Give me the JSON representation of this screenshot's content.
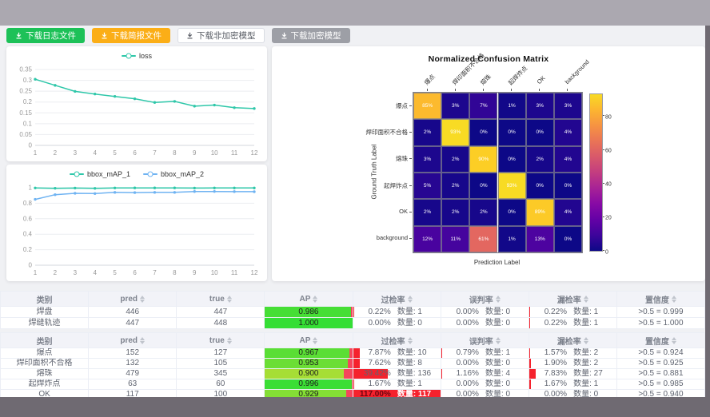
{
  "window": {
    "topband_color": "#aba8b0",
    "chrome_color": "#6f6a72",
    "content_bg": "#f0f1f4"
  },
  "toolbar": {
    "buttons": [
      {
        "name": "download-log-file-button",
        "label": "下载日志文件",
        "bg": "#1dc158",
        "fg": "#ffffff",
        "border": "#1dc158"
      },
      {
        "name": "download-report-file-button",
        "label": "下载简报文件",
        "bg": "#fbae17",
        "fg": "#ffffff",
        "border": "#fbae17"
      },
      {
        "name": "download-unencrypted-model-button",
        "label": "下载非加密模型",
        "bg": "#ffffff",
        "fg": "#5a5e66",
        "border": "#d9dce3"
      },
      {
        "name": "download-encrypted-model-button",
        "label": "下载加密模型",
        "bg": "#9d9fa6",
        "fg": "#ffffff",
        "border": "#9d9fa6"
      }
    ]
  },
  "chart_data": [
    {
      "type": "line",
      "title": "",
      "legend_position": "top",
      "x": [
        1,
        2,
        3,
        4,
        5,
        6,
        7,
        8,
        9,
        10,
        11,
        12
      ],
      "series": [
        {
          "name": "loss",
          "color": "#2ec7a9",
          "values": [
            0.305,
            0.277,
            0.249,
            0.237,
            0.226,
            0.215,
            0.198,
            0.203,
            0.181,
            0.186,
            0.174,
            0.17
          ]
        }
      ],
      "ylim": [
        0,
        0.35
      ],
      "yticks": [
        0,
        0.05,
        0.1,
        0.15,
        0.2,
        0.25,
        0.3,
        0.35
      ],
      "grid": true
    },
    {
      "type": "line",
      "title": "",
      "legend_position": "top",
      "x": [
        1,
        2,
        3,
        4,
        5,
        6,
        7,
        8,
        9,
        10,
        11,
        12
      ],
      "series": [
        {
          "name": "bbox_mAP_1",
          "color": "#2ec7a9",
          "values": [
            0.997,
            0.993,
            0.996,
            0.992,
            0.997,
            0.998,
            0.998,
            0.998,
            0.996,
            0.997,
            0.997,
            0.997
          ]
        },
        {
          "name": "bbox_mAP_2",
          "color": "#6fb3f2",
          "values": [
            0.85,
            0.91,
            0.928,
            0.925,
            0.94,
            0.937,
            0.94,
            0.94,
            0.951,
            0.952,
            0.95,
            0.949
          ]
        }
      ],
      "ylim": [
        0,
        1
      ],
      "yticks": [
        0,
        0.2,
        0.4,
        0.6,
        0.8,
        1
      ],
      "grid": true
    },
    {
      "type": "heatmap",
      "title": "Normalized Confusion Matrix",
      "xlabel": "Prediction Label",
      "ylabel": "Ground Truth Label",
      "labels": [
        "爆点",
        "焊印面积不合格",
        "熔珠",
        "起焊炸点",
        "OK",
        "background"
      ],
      "matrix_percent": [
        [
          85,
          3,
          7,
          1,
          3,
          3
        ],
        [
          2,
          93,
          0,
          0,
          0,
          4
        ],
        [
          3,
          2,
          90,
          0,
          2,
          4
        ],
        [
          5,
          2,
          0,
          93,
          0,
          0
        ],
        [
          2,
          2,
          2,
          0,
          89,
          4
        ],
        [
          12,
          11,
          61,
          1,
          13,
          0
        ]
      ],
      "colormap": "plasma",
      "colorbar_ticks": [
        0,
        20,
        40,
        60,
        80
      ],
      "colorbar_max": 93
    }
  ],
  "tables": {
    "count_label": "数量",
    "headers": [
      "类别",
      "pred",
      "true",
      "AP",
      "过检率",
      "误判率",
      "漏检率",
      "置信度"
    ],
    "groups": [
      {
        "rows": [
          {
            "cls": "焊盘",
            "pred": 446,
            "true": 447,
            "ap": 0.986,
            "over": 0.22,
            "over_n": 1,
            "mis": 0.0,
            "mis_n": 0,
            "miss": 0.22,
            "miss_n": 1,
            "conf": ">0.5 = 0.999"
          },
          {
            "cls": "焊缝轨迹",
            "pred": 447,
            "true": 448,
            "ap": 1.0,
            "over": 0.0,
            "over_n": 0,
            "mis": 0.0,
            "mis_n": 0,
            "miss": 0.22,
            "miss_n": 1,
            "conf": ">0.5 = 1.000"
          }
        ]
      },
      {
        "rows": [
          {
            "cls": "爆点",
            "pred": 152,
            "true": 127,
            "ap": 0.967,
            "over": 7.87,
            "over_n": 10,
            "mis": 0.79,
            "mis_n": 1,
            "miss": 1.57,
            "miss_n": 2,
            "conf": ">0.5 = 0.924"
          },
          {
            "cls": "焊印面积不合格",
            "pred": 132,
            "true": 105,
            "ap": 0.953,
            "over": 7.62,
            "over_n": 8,
            "mis": 0.0,
            "mis_n": 0,
            "miss": 1.9,
            "miss_n": 2,
            "conf": ">0.5 = 0.925"
          },
          {
            "cls": "熔珠",
            "pred": 479,
            "true": 345,
            "ap": 0.9,
            "over": 39.42,
            "over_n": 136,
            "mis": 1.16,
            "mis_n": 4,
            "miss": 7.83,
            "miss_n": 27,
            "conf": ">0.5 = 0.881"
          },
          {
            "cls": "起焊炸点",
            "pred": 63,
            "true": 60,
            "ap": 0.996,
            "over": 1.67,
            "over_n": 1,
            "mis": 0.0,
            "mis_n": 0,
            "miss": 1.67,
            "miss_n": 1,
            "conf": ">0.5 = 0.985"
          },
          {
            "cls": "OK",
            "pred": 117,
            "true": 100,
            "ap": 0.929,
            "over": 117.0,
            "over_n": 117,
            "mis": 0.0,
            "mis_n": 0,
            "miss": 0.0,
            "miss_n": 0,
            "conf": ">0.5 = 0.940"
          }
        ]
      }
    ]
  }
}
